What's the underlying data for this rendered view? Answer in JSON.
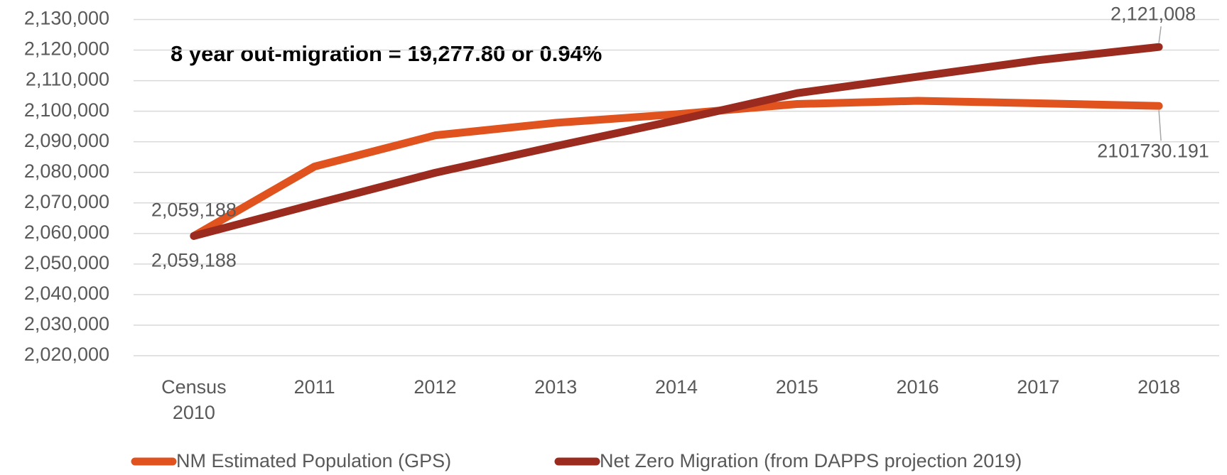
{
  "chart_data": {
    "type": "line",
    "annotation": "8 year out-migration = 19,277.80 or 0.94%",
    "categories": [
      "Census 2010",
      "2011",
      "2012",
      "2013",
      "2014",
      "2015",
      "2016",
      "2017",
      "2018"
    ],
    "series": [
      {
        "name": "NM Estimated Population (GPS)",
        "color": "#e0531f",
        "values": [
          2059188,
          2081900,
          2092100,
          2096200,
          2099000,
          2102350,
          2103400,
          2102600,
          2101730.191
        ],
        "value_labels": [
          "2,059,188",
          null,
          null,
          null,
          null,
          null,
          null,
          null,
          "2101730.191"
        ]
      },
      {
        "name": "Net Zero Migration (from DAPPS projection 2019)",
        "color": "#9c2b1f",
        "values": [
          2059188,
          2069600,
          2079850,
          2088550,
          2097000,
          2105900,
          2111300,
          2116700,
          2121008
        ],
        "value_labels": [
          "2,059,188",
          null,
          null,
          null,
          null,
          null,
          null,
          null,
          "2,121,008"
        ]
      }
    ],
    "ylim": [
      2020000,
      2130000
    ],
    "yticks": [
      {
        "value": 2020000,
        "label": "2,020,000"
      },
      {
        "value": 2030000,
        "label": "2,030,000"
      },
      {
        "value": 2040000,
        "label": "2,040,000"
      },
      {
        "value": 2050000,
        "label": "2,050,000"
      },
      {
        "value": 2060000,
        "label": "2,060,000"
      },
      {
        "value": 2070000,
        "label": "2,070,000"
      },
      {
        "value": 2080000,
        "label": "2,080,000"
      },
      {
        "value": 2090000,
        "label": "2,090,000"
      },
      {
        "value": 2100000,
        "label": "2,100,000"
      },
      {
        "value": 2110000,
        "label": "2,110,000"
      },
      {
        "value": 2120000,
        "label": "2,120,000"
      },
      {
        "value": 2130000,
        "label": "2,130,000"
      }
    ],
    "grid": true,
    "legend": "bottom"
  }
}
